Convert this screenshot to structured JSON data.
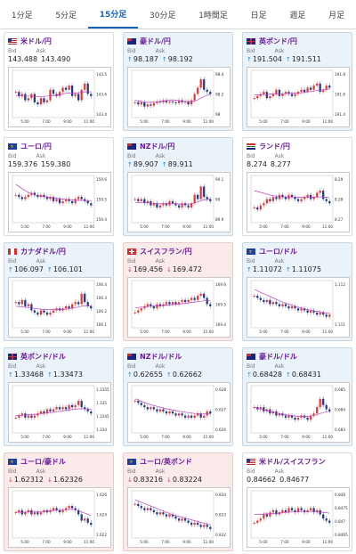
{
  "tabs": [
    {
      "label": "1分足",
      "active": false
    },
    {
      "label": "5分足",
      "active": false
    },
    {
      "label": "15分足",
      "active": true
    },
    {
      "label": "30分足",
      "active": false
    },
    {
      "label": "1時間足",
      "active": false
    },
    {
      "label": "日足",
      "active": false
    },
    {
      "label": "週足",
      "active": false
    },
    {
      "label": "月足",
      "active": false
    }
  ],
  "labels": {
    "bid": "Bid",
    "ask": "Ask"
  },
  "colors": {
    "up_bg": "#eaf3fa",
    "down_bg": "#fbeaea",
    "candle_up": "#e53935",
    "candle_down": "#1e3a8a",
    "ma": "#c040c0"
  },
  "cards": [
    {
      "id": "usd-jpy",
      "title": "米ドル/円",
      "flag": "us",
      "direction": "neutral",
      "bid": "143.488",
      "ask": "143.490",
      "chart_data": {
        "type": "candlestick",
        "yticks": [
          "143.5",
          "143.6",
          "143.4"
        ],
        "xticks": [
          "5:00",
          "7:00",
          "9:00",
          "11:00"
        ],
        "trend": [
          0.55,
          0.45,
          0.5,
          0.35,
          0.4,
          0.5,
          0.3,
          0.25,
          0.4,
          0.3,
          0.35,
          0.6,
          0.5,
          0.45,
          0.55,
          0.65,
          0.6,
          0.7,
          0.45,
          0.5,
          0.35,
          0.6,
          0.75,
          0.5,
          0.45
        ],
        "ma": [
          0.45,
          0.45,
          0.45,
          0.45,
          0.45,
          0.45,
          0.44,
          0.44,
          0.44,
          0.44,
          0.45,
          0.45,
          0.46,
          0.47,
          0.48,
          0.5,
          0.52,
          0.52,
          0.52,
          0.52,
          0.53,
          0.54,
          0.55,
          0.55,
          0.55
        ]
      }
    },
    {
      "id": "aud-jpy",
      "title": "豪ドル/円",
      "flag": "au",
      "direction": "up",
      "bid": "98.187",
      "ask": "98.192",
      "chart_data": {
        "type": "candlestick",
        "yticks": [
          "98.4",
          "98.2",
          "98"
        ],
        "xticks": [
          "5:00",
          "7:00",
          "9:00",
          "11:00"
        ],
        "trend": [
          0.3,
          0.25,
          0.3,
          0.2,
          0.25,
          0.22,
          0.28,
          0.32,
          0.3,
          0.35,
          0.3,
          0.32,
          0.3,
          0.28,
          0.35,
          0.3,
          0.32,
          0.25,
          0.35,
          0.5,
          0.65,
          0.85,
          0.6,
          0.55,
          0.5
        ],
        "ma": [
          0.35,
          0.33,
          0.32,
          0.3,
          0.3,
          0.3,
          0.3,
          0.31,
          0.32,
          0.33,
          0.34,
          0.35,
          0.36,
          0.35,
          0.34,
          0.33,
          0.32,
          0.32,
          0.32,
          0.33,
          0.36,
          0.4,
          0.44,
          0.47,
          0.5
        ]
      }
    },
    {
      "id": "gbp-jpy",
      "title": "英ポンド/円",
      "flag": "uk",
      "direction": "up",
      "bid": "191.504",
      "ask": "191.511",
      "chart_data": {
        "type": "candlestick",
        "yticks": [
          "191.8",
          "191.6",
          "191.4"
        ],
        "xticks": [
          "5:00",
          "7:00",
          "9:00",
          "11:00"
        ],
        "trend": [
          0.4,
          0.45,
          0.5,
          0.55,
          0.4,
          0.45,
          0.5,
          0.6,
          0.45,
          0.5,
          0.55,
          0.5,
          0.45,
          0.5,
          0.55,
          0.6,
          0.55,
          0.65,
          0.6,
          0.7,
          0.75,
          0.55,
          0.6,
          0.7,
          0.65
        ],
        "ma": [
          0.48,
          0.48,
          0.48,
          0.49,
          0.49,
          0.5,
          0.5,
          0.5,
          0.5,
          0.5,
          0.51,
          0.51,
          0.52,
          0.52,
          0.53,
          0.53,
          0.54,
          0.55,
          0.56,
          0.57,
          0.58,
          0.59,
          0.6,
          0.61,
          0.62
        ]
      }
    },
    {
      "id": "eur-jpy",
      "title": "ユーロ/円",
      "flag": "eu",
      "direction": "neutral",
      "bid": "159.376",
      "ask": "159.380",
      "chart_data": {
        "type": "candlestick",
        "yticks": [
          "159.6",
          "159.5",
          "159.4"
        ],
        "xticks": [
          "5:00",
          "7:00",
          "9:00",
          "11:00"
        ],
        "trend": [
          0.6,
          0.55,
          0.5,
          0.55,
          0.6,
          0.65,
          0.6,
          0.55,
          0.6,
          0.55,
          0.5,
          0.55,
          0.45,
          0.5,
          0.4,
          0.45,
          0.5,
          0.45,
          0.4,
          0.5,
          0.55,
          0.5,
          0.45,
          0.4,
          0.35
        ],
        "ma": [
          0.85,
          0.8,
          0.75,
          0.7,
          0.66,
          0.63,
          0.6,
          0.58,
          0.57,
          0.56,
          0.55,
          0.54,
          0.53,
          0.52,
          0.51,
          0.5,
          0.49,
          0.49,
          0.48,
          0.48,
          0.47,
          0.47,
          0.46,
          0.46,
          0.45
        ]
      }
    },
    {
      "id": "nzd-jpy",
      "title": "NZドル/円",
      "flag": "nz",
      "direction": "up",
      "bid": "89.907",
      "ask": "89.911",
      "chart_data": {
        "type": "candlestick",
        "yticks": [
          "90.1",
          "90",
          "89.9"
        ],
        "xticks": [
          "5:00",
          "7:00",
          "9:00",
          "11:00"
        ],
        "trend": [
          0.5,
          0.45,
          0.5,
          0.4,
          0.45,
          0.35,
          0.4,
          0.3,
          0.35,
          0.4,
          0.35,
          0.45,
          0.4,
          0.35,
          0.3,
          0.4,
          0.35,
          0.3,
          0.4,
          0.6,
          0.5,
          0.8,
          0.55,
          0.5,
          0.45
        ],
        "ma": [
          0.42,
          0.42,
          0.42,
          0.41,
          0.41,
          0.4,
          0.4,
          0.39,
          0.39,
          0.39,
          0.39,
          0.39,
          0.39,
          0.39,
          0.38,
          0.38,
          0.38,
          0.38,
          0.39,
          0.41,
          0.43,
          0.46,
          0.48,
          0.49,
          0.5
        ]
      }
    },
    {
      "id": "zar-jpy",
      "title": "ランド/円",
      "flag": "za",
      "direction": "neutral",
      "bid": "8.274",
      "ask": "8.277",
      "chart_data": {
        "type": "candlestick",
        "yticks": [
          "8.29",
          "8.28",
          "8.27"
        ],
        "xticks": [
          "5:00",
          "7:00",
          "9:00",
          "11:00"
        ],
        "trend": [
          0.3,
          0.25,
          0.35,
          0.4,
          0.5,
          0.45,
          0.55,
          0.5,
          0.6,
          0.55,
          0.5,
          0.6,
          0.55,
          0.5,
          0.45,
          0.5,
          0.55,
          0.6,
          0.5,
          0.55,
          0.65,
          0.7,
          0.5,
          0.45,
          0.4
        ],
        "ma": [
          0.7,
          0.68,
          0.66,
          0.64,
          0.62,
          0.6,
          0.58,
          0.57,
          0.56,
          0.55,
          0.55,
          0.55,
          0.55,
          0.55,
          0.54,
          0.54,
          0.54,
          0.54,
          0.54,
          0.54,
          0.55,
          0.55,
          0.55,
          0.54,
          0.53
        ]
      }
    },
    {
      "id": "cad-jpy",
      "title": "カナダドル/円",
      "flag": "ca",
      "direction": "up",
      "bid": "106.097",
      "ask": "106.101",
      "chart_data": {
        "type": "candlestick",
        "yticks": [
          "106.4",
          "106.3",
          "106.2",
          "106.1"
        ],
        "xticks": [
          "5:00",
          "7:00",
          "9:00",
          "11:00"
        ],
        "trend": [
          0.55,
          0.5,
          0.6,
          0.45,
          0.5,
          0.35,
          0.3,
          0.25,
          0.35,
          0.3,
          0.25,
          0.3,
          0.35,
          0.4,
          0.35,
          0.4,
          0.45,
          0.4,
          0.5,
          0.55,
          0.5,
          0.75,
          0.55,
          0.45,
          0.4
        ],
        "ma": [
          0.45,
          0.44,
          0.44,
          0.43,
          0.42,
          0.41,
          0.4,
          0.39,
          0.38,
          0.37,
          0.37,
          0.37,
          0.37,
          0.37,
          0.37,
          0.38,
          0.38,
          0.39,
          0.4,
          0.42,
          0.43,
          0.45,
          0.46,
          0.46,
          0.46
        ]
      }
    },
    {
      "id": "chf-jpy",
      "title": "スイスフラン/円",
      "flag": "ch",
      "direction": "down",
      "bid": "169.456",
      "ask": "169.472",
      "chart_data": {
        "type": "candlestick",
        "yticks": [
          "169.6",
          "169.5",
          "169.4"
        ],
        "xticks": [
          "5:00",
          "7:00",
          "9:00",
          "11:00"
        ],
        "trend": [
          0.3,
          0.35,
          0.4,
          0.45,
          0.5,
          0.45,
          0.4,
          0.5,
          0.45,
          0.5,
          0.55,
          0.5,
          0.55,
          0.5,
          0.55,
          0.6,
          0.55,
          0.6,
          0.65,
          0.6,
          0.7,
          0.75,
          0.65,
          0.5,
          0.45
        ],
        "ma": [
          0.42,
          0.42,
          0.43,
          0.43,
          0.44,
          0.45,
          0.45,
          0.46,
          0.46,
          0.47,
          0.48,
          0.48,
          0.49,
          0.5,
          0.5,
          0.51,
          0.52,
          0.53,
          0.54,
          0.55,
          0.56,
          0.57,
          0.58,
          0.58,
          0.58
        ]
      }
    },
    {
      "id": "eur-usd",
      "title": "ユーロ/ドル",
      "flag": "eu",
      "direction": "up",
      "bid": "1.11072",
      "ask": "1.11075",
      "chart_data": {
        "type": "candlestick",
        "yticks": [
          "1.112",
          "1.111"
        ],
        "xticks": [
          "5:00",
          "7:00",
          "9:00",
          "11:00"
        ],
        "trend": [
          0.7,
          0.65,
          0.6,
          0.55,
          0.6,
          0.5,
          0.55,
          0.5,
          0.45,
          0.5,
          0.45,
          0.4,
          0.45,
          0.4,
          0.35,
          0.4,
          0.35,
          0.3,
          0.35,
          0.3,
          0.25,
          0.3,
          0.25,
          0.2,
          0.25
        ],
        "ma": [
          0.85,
          0.82,
          0.78,
          0.75,
          0.72,
          0.68,
          0.65,
          0.62,
          0.58,
          0.55,
          0.52,
          0.5,
          0.48,
          0.45,
          0.43,
          0.41,
          0.39,
          0.37,
          0.35,
          0.34,
          0.33,
          0.32,
          0.3,
          0.29,
          0.28
        ]
      }
    },
    {
      "id": "gbp-usd",
      "title": "英ポンド/ドル",
      "flag": "uk",
      "direction": "up",
      "bid": "1.33468",
      "ask": "1.33473",
      "chart_data": {
        "type": "candlestick",
        "yticks": [
          "1.3355",
          "1.335",
          "1.3345",
          "1.334"
        ],
        "xticks": [
          "5:00",
          "7:00",
          "9:00",
          "11:00"
        ],
        "trend": [
          0.3,
          0.35,
          0.4,
          0.3,
          0.35,
          0.3,
          0.35,
          0.4,
          0.45,
          0.4,
          0.5,
          0.45,
          0.5,
          0.55,
          0.5,
          0.55,
          0.5,
          0.6,
          0.55,
          0.6,
          0.7,
          0.55,
          0.5,
          0.45,
          0.4
        ],
        "ma": [
          0.35,
          0.35,
          0.36,
          0.36,
          0.37,
          0.37,
          0.38,
          0.38,
          0.39,
          0.4,
          0.41,
          0.42,
          0.43,
          0.44,
          0.45,
          0.46,
          0.47,
          0.48,
          0.49,
          0.5,
          0.51,
          0.51,
          0.51,
          0.51,
          0.5
        ]
      }
    },
    {
      "id": "nzd-usd",
      "title": "NZドル/ドル",
      "flag": "nz",
      "direction": "up",
      "bid": "0.62655",
      "ask": "0.62662",
      "chart_data": {
        "type": "candlestick",
        "yticks": [
          "0.628",
          "0.627",
          "0.626"
        ],
        "xticks": [
          "5:00",
          "7:00",
          "9:00",
          "11:00"
        ],
        "trend": [
          0.7,
          0.65,
          0.6,
          0.55,
          0.5,
          0.55,
          0.5,
          0.45,
          0.5,
          0.45,
          0.4,
          0.45,
          0.4,
          0.35,
          0.4,
          0.35,
          0.3,
          0.35,
          0.3,
          0.35,
          0.4,
          0.3,
          0.35,
          0.45,
          0.4
        ],
        "ma": [
          0.75,
          0.72,
          0.69,
          0.66,
          0.63,
          0.61,
          0.59,
          0.57,
          0.55,
          0.53,
          0.51,
          0.5,
          0.48,
          0.47,
          0.45,
          0.44,
          0.43,
          0.42,
          0.41,
          0.4,
          0.4,
          0.39,
          0.39,
          0.39,
          0.39
        ]
      }
    },
    {
      "id": "aud-usd",
      "title": "豪ドル/ドル",
      "flag": "au",
      "direction": "up",
      "bid": "0.68428",
      "ask": "0.68431",
      "chart_data": {
        "type": "candlestick",
        "yticks": [
          "0.685",
          "0.684",
          "0.683"
        ],
        "xticks": [
          "5:00",
          "7:00",
          "9:00",
          "11:00"
        ],
        "trend": [
          0.55,
          0.5,
          0.55,
          0.45,
          0.5,
          0.4,
          0.45,
          0.35,
          0.4,
          0.35,
          0.3,
          0.35,
          0.3,
          0.25,
          0.3,
          0.35,
          0.3,
          0.25,
          0.35,
          0.4,
          0.55,
          0.75,
          0.6,
          0.5,
          0.45
        ],
        "ma": [
          0.55,
          0.53,
          0.51,
          0.49,
          0.47,
          0.45,
          0.43,
          0.41,
          0.4,
          0.38,
          0.37,
          0.36,
          0.35,
          0.34,
          0.33,
          0.33,
          0.33,
          0.33,
          0.34,
          0.35,
          0.37,
          0.4,
          0.42,
          0.44,
          0.45
        ]
      }
    },
    {
      "id": "eur-aud",
      "title": "ユーロ/豪ドル",
      "flag": "eu",
      "direction": "down",
      "bid": "1.62312",
      "ask": "1.62326",
      "chart_data": {
        "type": "candlestick",
        "yticks": [
          "1.626",
          "1.624",
          "1.622"
        ],
        "xticks": [
          "5:00",
          "7:00",
          "9:00",
          "11:00"
        ],
        "trend": [
          0.55,
          0.6,
          0.5,
          0.55,
          0.6,
          0.5,
          0.55,
          0.5,
          0.55,
          0.6,
          0.55,
          0.6,
          0.65,
          0.6,
          0.55,
          0.6,
          0.65,
          0.7,
          0.65,
          0.6,
          0.5,
          0.35,
          0.4,
          0.3,
          0.25
        ],
        "ma": [
          0.55,
          0.55,
          0.55,
          0.55,
          0.56,
          0.56,
          0.56,
          0.56,
          0.57,
          0.57,
          0.58,
          0.58,
          0.59,
          0.6,
          0.6,
          0.61,
          0.61,
          0.62,
          0.62,
          0.61,
          0.59,
          0.56,
          0.53,
          0.5,
          0.47
        ]
      }
    },
    {
      "id": "eur-gbp",
      "title": "ユーロ/英ポンド",
      "flag": "eu",
      "direction": "down",
      "bid": "0.83216",
      "ask": "0.83224",
      "chart_data": {
        "type": "candlestick",
        "yticks": [
          "0.834",
          "0.833",
          "0.832"
        ],
        "xticks": [
          "5:00",
          "7:00",
          "9:00",
          "11:00"
        ],
        "trend": [
          0.75,
          0.7,
          0.65,
          0.6,
          0.65,
          0.6,
          0.55,
          0.5,
          0.55,
          0.5,
          0.45,
          0.5,
          0.45,
          0.4,
          0.35,
          0.4,
          0.35,
          0.3,
          0.25,
          0.3,
          0.25,
          0.2,
          0.25,
          0.2,
          0.15
        ],
        "ma": [
          0.85,
          0.82,
          0.79,
          0.76,
          0.73,
          0.7,
          0.67,
          0.64,
          0.61,
          0.58,
          0.55,
          0.52,
          0.49,
          0.47,
          0.45,
          0.43,
          0.41,
          0.39,
          0.37,
          0.35,
          0.33,
          0.31,
          0.29,
          0.27,
          0.25
        ]
      }
    },
    {
      "id": "usd-chf",
      "title": "米ドル/スイスフラン",
      "flag": "us",
      "direction": "neutral",
      "bid": "0.84662",
      "ask": "0.84677",
      "chart_data": {
        "type": "candlestick",
        "yticks": [
          "0.848",
          "0.8475",
          "0.847",
          "0.8465"
        ],
        "xticks": [
          "5:00",
          "7:00",
          "9:00",
          "11:00"
        ],
        "trend": [
          0.3,
          0.35,
          0.4,
          0.5,
          0.45,
          0.55,
          0.6,
          0.5,
          0.55,
          0.6,
          0.55,
          0.65,
          0.6,
          0.55,
          0.65,
          0.6,
          0.55,
          0.6,
          0.65,
          0.55,
          0.6,
          0.5,
          0.4,
          0.35,
          0.3
        ],
        "ma": [
          0.5,
          0.5,
          0.5,
          0.51,
          0.51,
          0.52,
          0.52,
          0.53,
          0.53,
          0.54,
          0.55,
          0.55,
          0.56,
          0.56,
          0.57,
          0.57,
          0.57,
          0.57,
          0.57,
          0.57,
          0.57,
          0.56,
          0.55,
          0.54,
          0.53
        ]
      }
    }
  ]
}
